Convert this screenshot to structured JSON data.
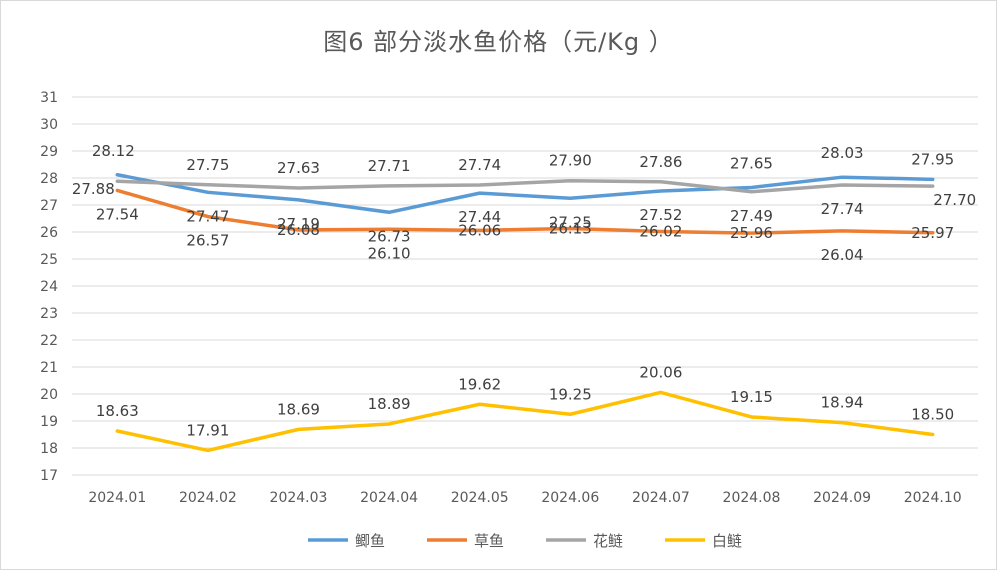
{
  "chart_data": {
    "type": "line",
    "title": "图6  部分淡水鱼价格（元/Kg ）",
    "categories": [
      "2024.01",
      "2024.02",
      "2024.03",
      "2024.04",
      "2024.05",
      "2024.06",
      "2024.07",
      "2024.08",
      "2024.09",
      "2024.10"
    ],
    "ylim": [
      17,
      31
    ],
    "yticks": [
      17,
      18,
      19,
      20,
      21,
      22,
      23,
      24,
      25,
      26,
      27,
      28,
      29,
      30,
      31
    ],
    "grid": true,
    "legend_position": "bottom",
    "series": [
      {
        "name": "鲫鱼",
        "color": "#5b9bd5",
        "values": [
          28.12,
          27.47,
          27.19,
          26.73,
          27.44,
          27.25,
          27.52,
          27.65,
          28.03,
          27.95
        ]
      },
      {
        "name": "草鱼",
        "color": "#ed7d31",
        "values": [
          27.54,
          26.57,
          26.08,
          26.1,
          26.06,
          26.13,
          26.02,
          25.96,
          26.04,
          25.97
        ]
      },
      {
        "name": "花鲢",
        "color": "#a5a5a5",
        "values": [
          27.88,
          27.75,
          27.63,
          27.71,
          27.74,
          27.9,
          27.86,
          27.49,
          27.74,
          27.7
        ]
      },
      {
        "name": "白鲢",
        "color": "#ffc000",
        "values": [
          18.63,
          17.91,
          18.69,
          18.89,
          19.62,
          19.25,
          20.06,
          19.15,
          18.94,
          18.5
        ]
      }
    ]
  }
}
